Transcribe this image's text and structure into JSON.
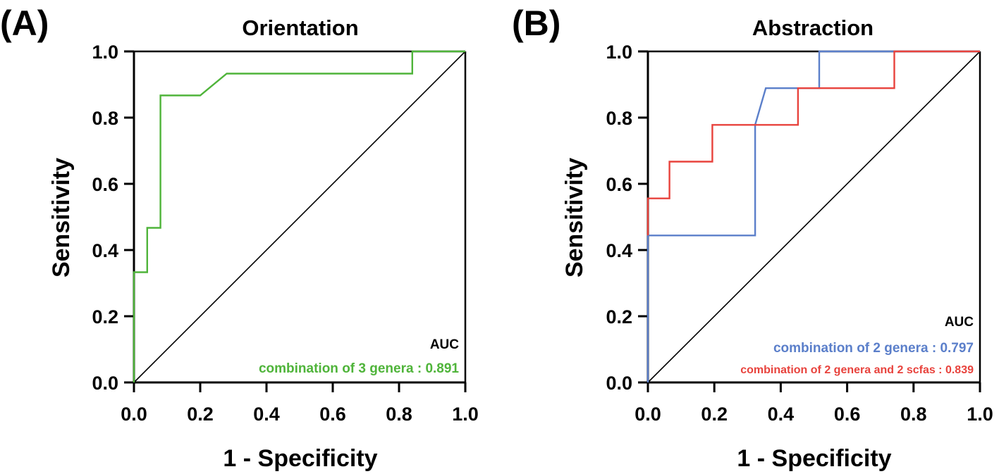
{
  "chart_data": [
    {
      "type": "line",
      "panel_label": "(A)",
      "title": "Orientation",
      "xlabel": "1 - Specificity",
      "ylabel": "Sensitivity",
      "xlim": [
        0,
        1
      ],
      "ylim": [
        0,
        1
      ],
      "x_ticks": [
        "0.0",
        "0.2",
        "0.4",
        "0.6",
        "0.8",
        "1.0"
      ],
      "y_ticks": [
        "0.0",
        "0.2",
        "0.4",
        "0.6",
        "0.8",
        "1.0"
      ],
      "reference_line": true,
      "legend_title": "AUC",
      "legend_placement": "bottom-right",
      "series": [
        {
          "name": "combination of 3 genera",
          "auc": "0.891",
          "legend_text": "combination of 3 genera : 0.891",
          "color": "#4fb43a",
          "x": [
            0,
            0,
            0.04,
            0.04,
            0.08,
            0.08,
            0.2,
            0.28,
            0.84,
            0.84,
            1.0
          ],
          "y": [
            0,
            0.333,
            0.333,
            0.467,
            0.467,
            0.867,
            0.867,
            0.933,
            0.933,
            1.0,
            1.0
          ]
        }
      ]
    },
    {
      "type": "line",
      "panel_label": "(B)",
      "title": "Abstraction",
      "xlabel": "1 - Specificity",
      "ylabel": "Sensitivity",
      "xlim": [
        0,
        1
      ],
      "ylim": [
        0,
        1
      ],
      "x_ticks": [
        "0.0",
        "0.2",
        "0.4",
        "0.6",
        "0.8",
        "1.0"
      ],
      "y_ticks": [
        "0.0",
        "0.2",
        "0.4",
        "0.6",
        "0.8",
        "1.0"
      ],
      "reference_line": true,
      "legend_title": "AUC",
      "legend_placement": "bottom-right",
      "series": [
        {
          "name": "combination of 2 genera",
          "auc": "0.797",
          "legend_text": "combination of 2 genera : 0.797",
          "color": "#5b7fca",
          "x": [
            0,
            0,
            0.323,
            0.323,
            0.355,
            0.516,
            0.516,
            1.0
          ],
          "y": [
            0,
            0.444,
            0.444,
            0.778,
            0.889,
            0.889,
            1.0,
            1.0
          ]
        },
        {
          "name": "combination of 2 genera and 2 scfas",
          "auc": "0.839",
          "legend_text": "combination of 2 genera and 2 scfas : 0.839",
          "color": "#e8433d",
          "x": [
            0,
            0,
            0.065,
            0.065,
            0.194,
            0.194,
            0.452,
            0.452,
            0.742,
            0.742,
            1.0
          ],
          "y": [
            0.444,
            0.556,
            0.556,
            0.667,
            0.667,
            0.778,
            0.778,
            0.889,
            0.889,
            1.0,
            1.0
          ]
        }
      ]
    }
  ]
}
